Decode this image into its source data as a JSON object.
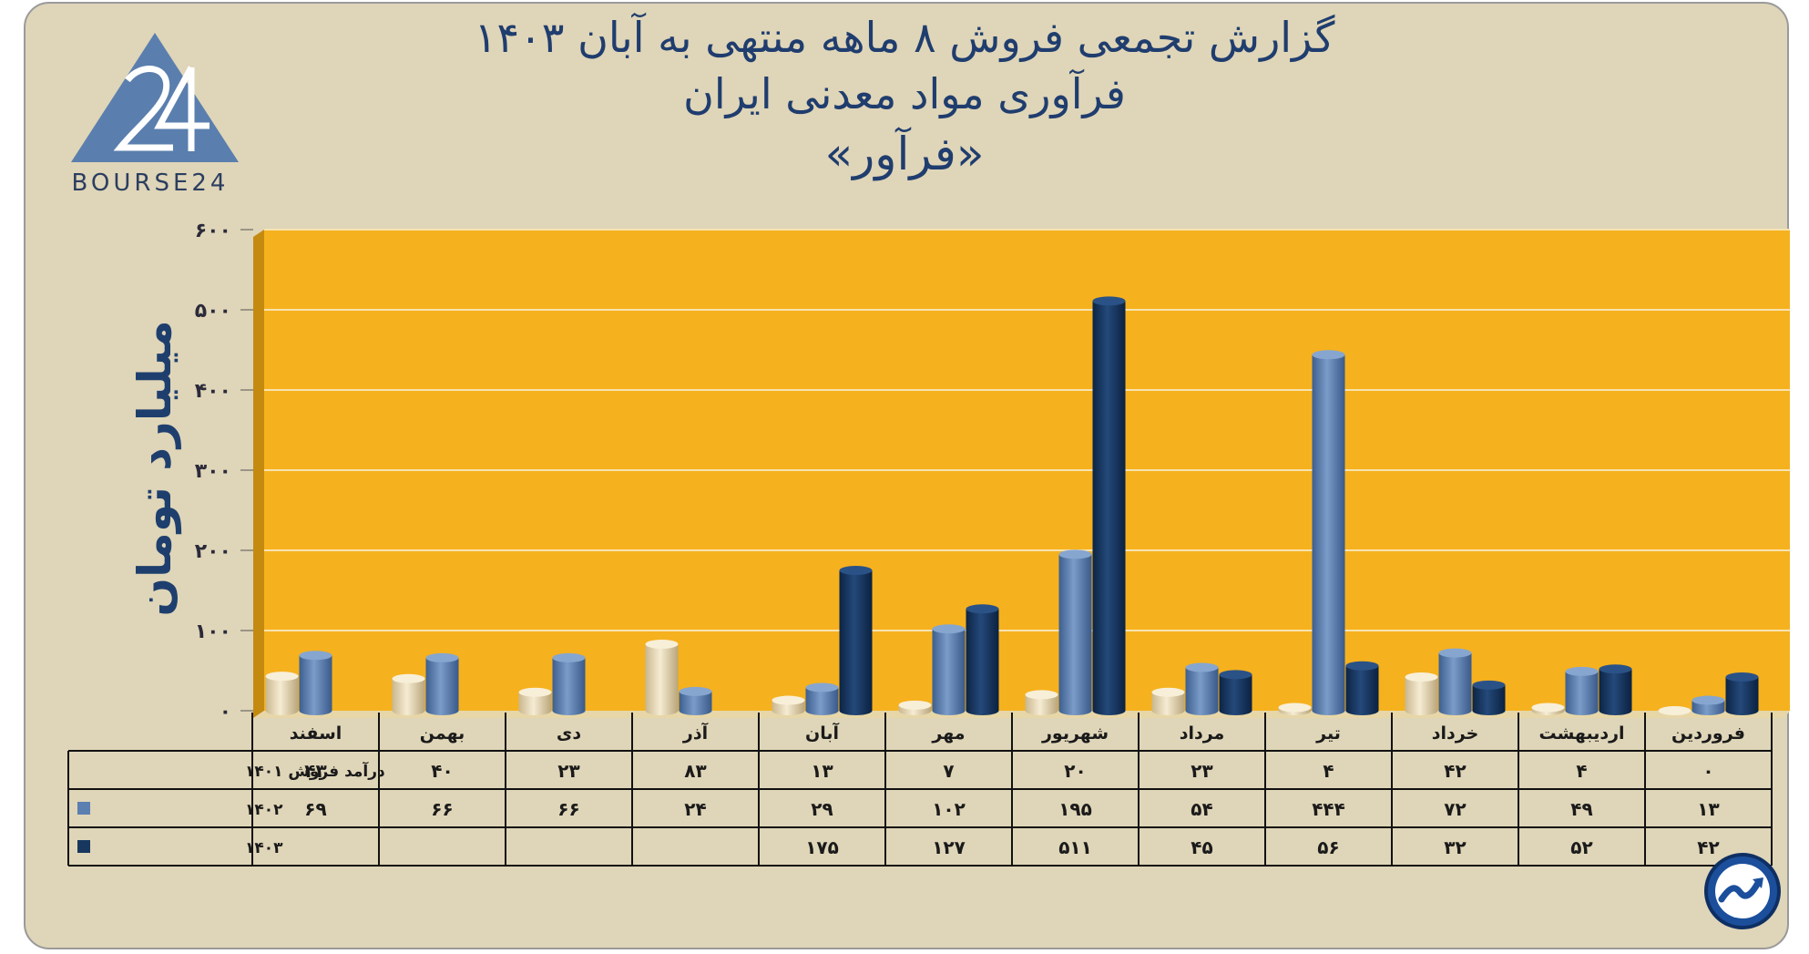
{
  "header": {
    "line1": "گزارش تجمعی فروش ۸ ماهه منتهی به آبان ۱۴۰۳",
    "line2": "فرآوری مواد معدنی ایران",
    "line3": "«فرآور»"
  },
  "logo": {
    "icon": "bourse24-triangle-logo",
    "text": "BOURSE24"
  },
  "badge": {
    "icon": "trend-arrow-circle-icon"
  },
  "colors": {
    "background": "#dfd5b8",
    "plot_area": "#f6b11e",
    "series_1401": "#e9dcbc",
    "series_1402": "#5b7fb0",
    "series_1403": "#17375e",
    "text": "#1f3d6e"
  },
  "chart_data": {
    "type": "bar",
    "ylabel": "میلیارد تومان",
    "ylim": [
      0,
      600
    ],
    "yticks": [
      0,
      100,
      200,
      300,
      400,
      500,
      600
    ],
    "ytick_labels": [
      "۰",
      "۱۰۰",
      "۲۰۰",
      "۳۰۰",
      "۴۰۰",
      "۵۰۰",
      "۶۰۰"
    ],
    "grid": true,
    "categories": [
      "فروردین",
      "اردیبهشت",
      "خرداد",
      "تیر",
      "مرداد",
      "شهریور",
      "مهر",
      "آبان",
      "آذر",
      "دی",
      "بهمن",
      "اسفند"
    ],
    "series": [
      {
        "name": "درآمد فروش ۱۴۰۱",
        "values": [
          0,
          4,
          42,
          4,
          23,
          20,
          7,
          13,
          83,
          23,
          40,
          43
        ]
      },
      {
        "name": "۱۴۰۲",
        "values": [
          13,
          49,
          72,
          444,
          54,
          195,
          102,
          29,
          24,
          66,
          66,
          69
        ]
      },
      {
        "name": "۱۴۰۳",
        "values": [
          42,
          52,
          32,
          56,
          45,
          511,
          127,
          175,
          null,
          null,
          null,
          null
        ]
      }
    ],
    "table": {
      "rows": [
        [
          "۰",
          "۴",
          "۴۲",
          "۴",
          "۲۳",
          "۲۰",
          "۷",
          "۱۳",
          "۸۳",
          "۲۳",
          "۴۰",
          "۴۳"
        ],
        [
          "۱۳",
          "۴۹",
          "۷۲",
          "۴۴۴",
          "۵۴",
          "۱۹۵",
          "۱۰۲",
          "۲۹",
          "۲۴",
          "۶۶",
          "۶۶",
          "۶۹"
        ],
        [
          "۴۲",
          "۵۲",
          "۳۲",
          "۵۶",
          "۴۵",
          "۵۱۱",
          "۱۲۷",
          "۱۷۵",
          "",
          "",
          "",
          ""
        ]
      ]
    }
  }
}
